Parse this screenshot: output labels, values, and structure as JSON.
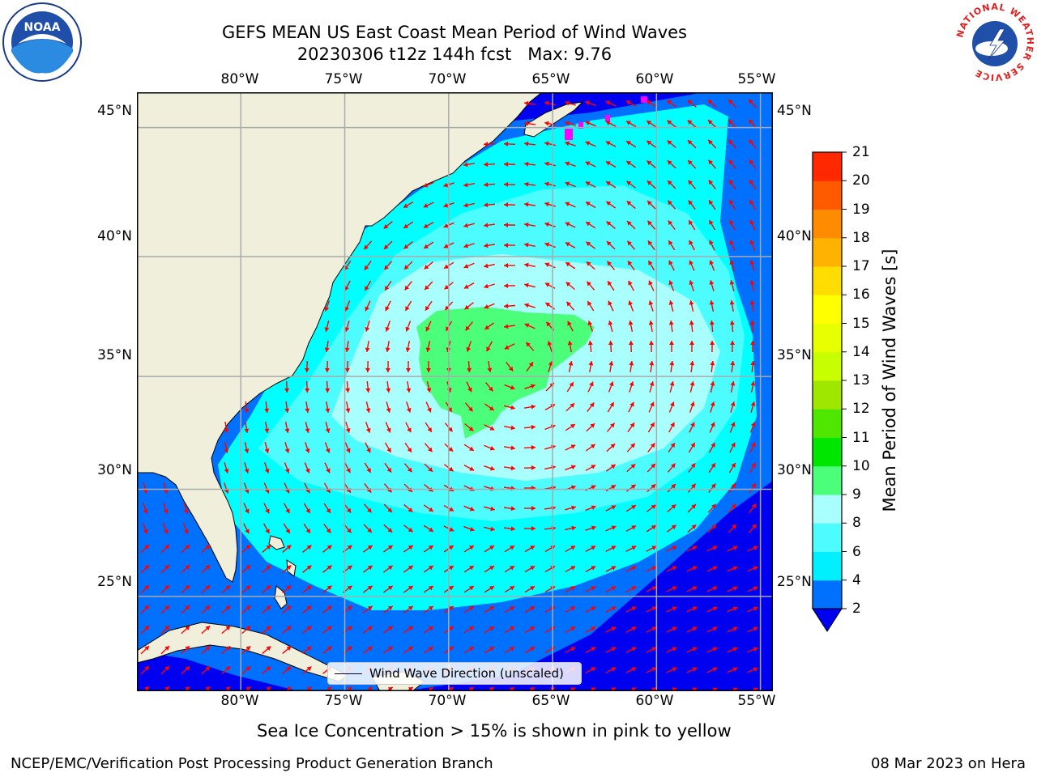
{
  "header": {
    "title_line1": "GEFS MEAN US East Coast Mean Period of Wind Waves",
    "title_line2": "20230306 t12z 144h fcst   Max: 9.76"
  },
  "logos": {
    "left": "NOAA",
    "right": "NATIONAL WEATHER SERVICE"
  },
  "map": {
    "lon_ticks": [
      "80°W",
      "75°W",
      "70°W",
      "65°W",
      "60°W",
      "55°W"
    ],
    "lat_ticks": [
      "45°N",
      "40°N",
      "35°N",
      "30°N",
      "25°N"
    ],
    "lon_range": [
      -85,
      -54.4
    ],
    "lat_range": [
      20.4,
      46.3
    ],
    "colors": {
      "land": "#efefdc",
      "ocean_deep": "#0000f0",
      "band_2_4": "#0070ff",
      "band_4_6": "#00ffff",
      "band_6_8": "#4dfcff",
      "band_8_9": "#a8fffd",
      "band_9_10": "#4cff7a",
      "arrow": "#ff0000",
      "ice": "#ff00ff"
    },
    "legend_label": "Wind Wave Direction (unscaled)"
  },
  "colorbar": {
    "title": "Mean Period of Wind Waves [s]",
    "labels": [
      "2",
      "4",
      "6",
      "8",
      "9",
      "10",
      "11",
      "12",
      "13",
      "14",
      "15",
      "16",
      "17",
      "18",
      "19",
      "20",
      "21"
    ],
    "colors": [
      "#0070ff",
      "#00f0ff",
      "#4dfcff",
      "#a8fffd",
      "#4cff7a",
      "#00e600",
      "#4fe600",
      "#9fe600",
      "#c8ff00",
      "#e8ff00",
      "#ffff00",
      "#ffdd00",
      "#ffb300",
      "#ff8c00",
      "#ff5a00",
      "#ff2800"
    ],
    "under_color": "#0000f0"
  },
  "footer": {
    "caption": "Sea Ice Concentration > 15% is shown in pink to yellow",
    "credit": "NCEP/EMC/Verification Post Processing Product Generation Branch",
    "date": "08 Mar 2023 on Hera"
  }
}
